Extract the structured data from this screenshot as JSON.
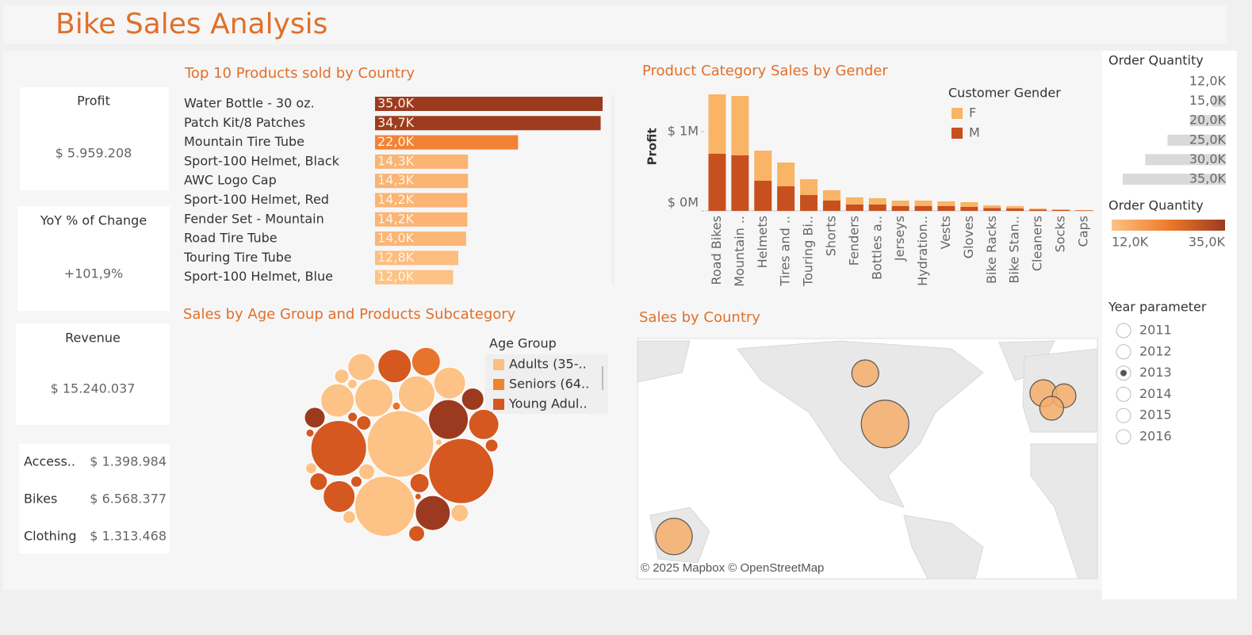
{
  "title": "Bike Sales Analysis",
  "kpis": [
    {
      "label": "Profit",
      "value": "$ 5.959.208"
    },
    {
      "label": "YoY % of Change",
      "value": "+101,9%"
    },
    {
      "label": "Revenue",
      "value": "$ 15.240.037"
    }
  ],
  "category_revenue": [
    [
      "Access..",
      "$ 1.398.984"
    ],
    [
      "Bikes",
      "$ 6.568.377"
    ],
    [
      "Clothing",
      "$ 1.313.468"
    ]
  ],
  "chart_data": [
    {
      "type": "hbar",
      "title": "Top 10 Products sold by Country",
      "categories": [
        "Water Bottle - 30 oz.",
        "Patch Kit/8 Patches",
        "Mountain Tire Tube",
        "Sport-100 Helmet, Black",
        "AWC Logo Cap",
        "Sport-100 Helmet, Red",
        "Fender Set - Mountain",
        "Road Tire Tube",
        "Touring Tire Tube",
        "Sport-100 Helmet, Blue"
      ],
      "values": [
        35000,
        34700,
        22000,
        14300,
        14300,
        14200,
        14200,
        14000,
        12800,
        12000
      ],
      "value_labels": [
        "35,0K",
        "34,7K",
        "22,0K",
        "14,3K",
        "14,3K",
        "14,2K",
        "14,2K",
        "14,0K",
        "12,8K",
        "12,0K"
      ],
      "color_scale": {
        "title": "Order Quantity",
        "min": 12000,
        "max": 35000,
        "min_label": "12,0K",
        "max_label": "35,0K",
        "colors": [
          "#fdc285",
          "#f07a2a",
          "#9c3a1f"
        ]
      }
    },
    {
      "type": "stacked_bar",
      "title": "Product Category Sales by Gender",
      "y_label": "Profit",
      "categories": [
        "Road Bikes",
        "Mountain ..",
        "Helmets",
        "Tires and ..",
        "Touring Bi..",
        "Shorts",
        "Fenders",
        "Bottles a..",
        "Jerseys",
        "Hydration..",
        "Vests",
        "Gloves",
        "Bike Racks",
        "Bike Stan..",
        "Cleaners",
        "Socks",
        "Caps"
      ],
      "legend_title": "Customer Gender",
      "series": [
        {
          "name": "F",
          "color": "#f9b466",
          "values": [
            750000,
            750000,
            380000,
            300000,
            200000,
            130000,
            90000,
            80000,
            70000,
            70000,
            60000,
            60000,
            35000,
            30000,
            15000,
            10000,
            5000
          ]
        },
        {
          "name": "M",
          "color": "#c8501f",
          "values": [
            720000,
            700000,
            380000,
            310000,
            200000,
            130000,
            80000,
            80000,
            60000,
            60000,
            60000,
            50000,
            35000,
            30000,
            15000,
            10000,
            5000
          ]
        }
      ],
      "ylim": [
        0,
        1560000
      ],
      "yticks": [
        {
          "value": 0,
          "label": "$ 0M"
        },
        {
          "value": 1000000,
          "label": "$ 1M"
        }
      ]
    },
    {
      "type": "packed_bubble",
      "title": "Sales by Age Group and Products Subcategory",
      "legend_title": "Age Group",
      "legend": [
        {
          "name": "Adults (35-..",
          "color": "#fbbf80"
        },
        {
          "name": "Seniors (64..",
          "color": "#f0832d"
        },
        {
          "name": "Young Adul..",
          "color": "#d4581f"
        }
      ],
      "values": [
        1764,
        1681,
        1444,
        1225,
        625,
        576,
        529,
        484,
        441,
        441,
        400,
        400,
        361,
        324,
        289,
        196,
        169,
        144,
        121,
        121,
        100,
        100,
        81,
        81,
        64,
        64,
        49,
        49,
        36,
        36,
        25,
        25,
        16,
        16
      ],
      "colors": [
        "#fdc285",
        "#d4581f",
        "#fdc285",
        "#d4581f",
        "#9c3a1f",
        "#fdc285",
        "#fdc285",
        "#9c3a1f",
        "#fdc285",
        "#d4581f",
        "#fdc285",
        "#d4581f",
        "#d4581f",
        "#e8732a",
        "#fdc285",
        "#9c3a1f",
        "#9c3a1f",
        "#d4581f",
        "#d4581f",
        "#fdc285",
        "#fdc285",
        "#d4581f",
        "#d4581f",
        "#fdc285",
        "#fdc285",
        "#d4581f",
        "#d4581f",
        "#fdc285",
        "#d4581f",
        "#fdc285",
        "#e8732a",
        "#d4581f",
        "#fdc285",
        "#d4581f"
      ]
    },
    {
      "type": "map",
      "title": "Sales by Country",
      "attribution": "© 2025 Mapbox © OpenStreetMap",
      "lon": [
        -98,
        134,
        -110,
        -2,
        10.5,
        3
      ],
      "lat": [
        39,
        -25,
        58.8,
        52,
        51,
        46
      ],
      "values": [
        35000,
        20600,
        11200,
        11200,
        8750,
        8750
      ],
      "color": "#f4ae6b",
      "size_legend": {
        "title": "Order Quantity",
        "ticks": [
          {
            "value": 12000,
            "label": "12,0K"
          },
          {
            "value": 15000,
            "label": "15,0K"
          },
          {
            "value": 20000,
            "label": "20,0K"
          },
          {
            "value": 25000,
            "label": "25,0K"
          },
          {
            "value": 30000,
            "label": "30,0K"
          },
          {
            "value": 35000,
            "label": "35,0K"
          }
        ]
      }
    }
  ],
  "year_parameter": {
    "title": "Year parameter",
    "options": [
      "2011",
      "2012",
      "2013",
      "2014",
      "2015",
      "2016"
    ],
    "selected": "2013"
  }
}
